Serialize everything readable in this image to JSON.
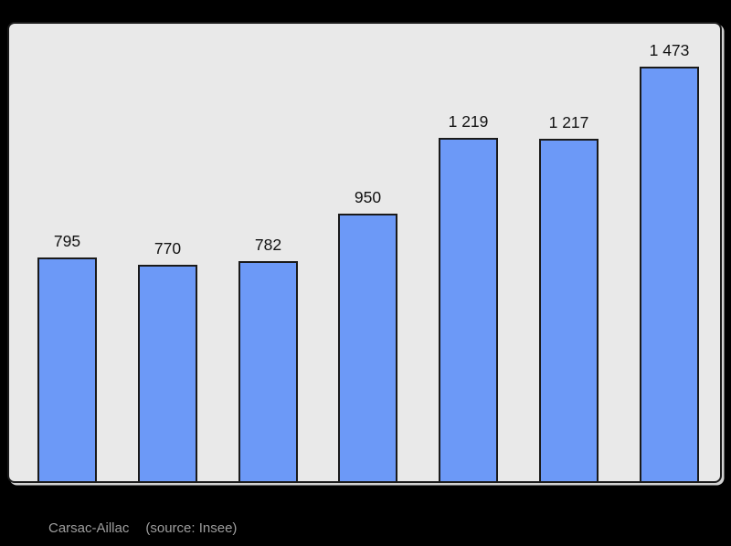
{
  "chart_data": {
    "type": "bar",
    "title": "Carsac-Aillac",
    "xlabel": "",
    "ylabel": "",
    "values": [
      795,
      770,
      782,
      950,
      1219,
      1217,
      1473
    ],
    "value_labels": [
      "795",
      "770",
      "782",
      "950",
      "1 219",
      "1 217",
      "1 473"
    ],
    "ylim": [
      0,
      1473
    ],
    "grid": false,
    "legend": "none",
    "bar_color": "#6c99f7",
    "bar_border_color": "#1a1a1a",
    "panel_background": "#e9e9e9",
    "panel_border_color": "#1a1a1a",
    "page_background": "#000000",
    "label_color": "#111111"
  },
  "caption": {
    "title": "Carsac-Aillac",
    "source": "(source: Insee)"
  }
}
